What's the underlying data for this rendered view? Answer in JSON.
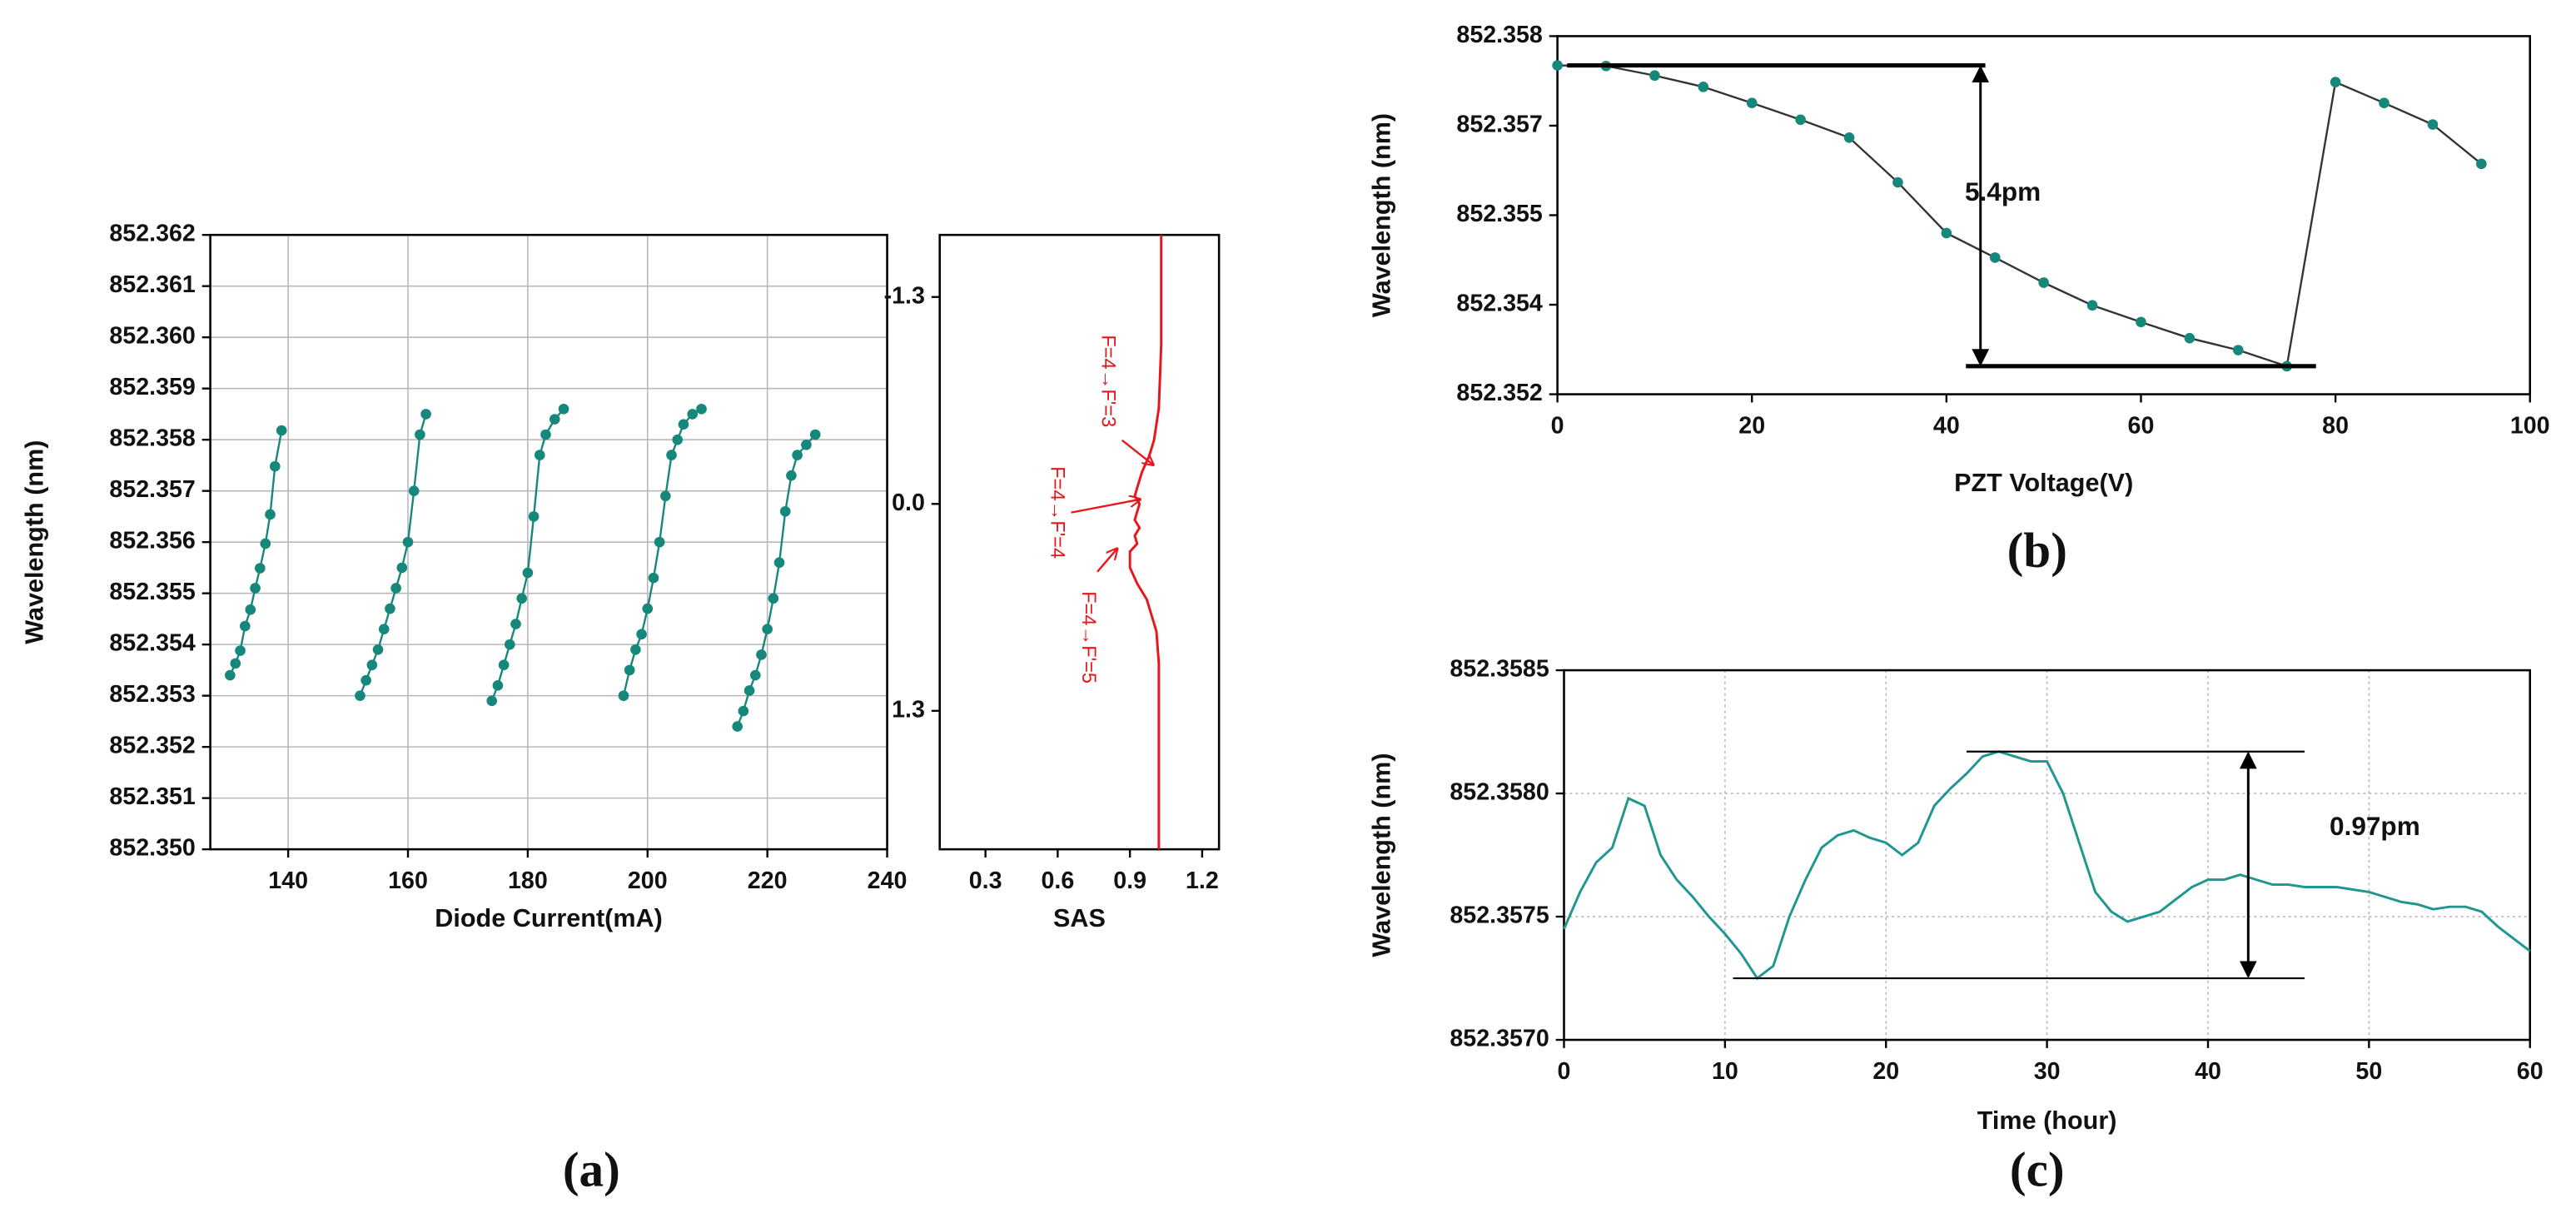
{
  "chart_data": [
    {
      "type": "line",
      "caption": "(a)",
      "xlabel": "Diode Current(mA)",
      "ylabel": "Wavelength (nm)",
      "xlim": [
        127,
        240
      ],
      "xticks": [
        140,
        160,
        180,
        200,
        220,
        240
      ],
      "ylim": [
        852.35,
        852.362
      ],
      "yticks": [
        {
          "value": 852.35,
          "label": "852.350"
        },
        852.351,
        852.352,
        852.353,
        852.354,
        852.355,
        852.356,
        852.357,
        852.358,
        852.359,
        {
          "value": 852.36,
          "label": "852.360"
        },
        852.361,
        852.362
      ],
      "grid": "solid",
      "markers": true,
      "series": [
        {
          "color": "#16877b",
          "x": [
            130.3,
            131.2,
            132,
            132.8,
            133.7,
            134.5,
            135.3,
            136.2,
            137,
            137.8,
            138.9
          ],
          "values": [
            852.3534,
            852.35363,
            852.35388,
            852.35436,
            852.35468,
            852.3551,
            852.35549,
            852.35597,
            852.35654,
            852.35748,
            852.35818
          ]
        },
        {
          "color": "#16877b",
          "x": [
            152,
            153,
            154,
            155,
            156,
            157,
            158,
            159,
            160,
            161,
            162,
            163
          ],
          "values": [
            852.353,
            852.3533,
            852.3536,
            852.3539,
            852.3543,
            852.3547,
            852.3551,
            852.3555,
            852.356,
            852.357,
            852.3581,
            852.3585
          ]
        },
        {
          "color": "#16877b",
          "x": [
            174,
            175,
            176,
            177,
            178,
            179,
            180,
            181,
            182,
            183,
            184.5,
            186
          ],
          "values": [
            852.3529,
            852.3532,
            852.3536,
            852.354,
            852.3544,
            852.3549,
            852.3554,
            852.3565,
            852.3577,
            852.3581,
            852.3584,
            852.3586
          ]
        },
        {
          "color": "#16877b",
          "x": [
            196,
            197,
            198,
            199,
            200,
            201,
            202,
            203,
            204,
            205,
            206,
            207.5,
            209
          ],
          "values": [
            852.353,
            852.3535,
            852.3539,
            852.3542,
            852.3547,
            852.3553,
            852.356,
            852.3569,
            852.3577,
            852.358,
            852.3583,
            852.3585,
            852.3586
          ]
        },
        {
          "color": "#16877b",
          "x": [
            215,
            216,
            217,
            218,
            219,
            220,
            221,
            222,
            223,
            224,
            225,
            226.5,
            228
          ],
          "values": [
            852.3524,
            852.3527,
            852.3531,
            852.3534,
            852.3538,
            852.3543,
            852.3549,
            852.3556,
            852.3566,
            852.3573,
            852.3577,
            852.3579,
            852.3581
          ]
        }
      ]
    },
    {
      "type": "line",
      "xlabel": "SAS",
      "xlim": [
        0.11,
        1.27
      ],
      "xticks": [
        0.3,
        0.6,
        0.9,
        1.2
      ],
      "ylim": [
        -1.69,
        2.17
      ],
      "y_inverted": true,
      "yticks": [
        -1.3,
        {
          "value": 0,
          "label": "0.0"
        },
        1.3
      ],
      "grid": false,
      "markers": false,
      "annotations": [
        {
          "text": "F=4→F'=3"
        },
        {
          "text": "F=4→F'=4"
        },
        {
          "text": "F=4→F'=5"
        }
      ],
      "series": [
        {
          "color": "#e8161b",
          "x": [
            1.03,
            1.03,
            1.02,
            1.0,
            0.98,
            0.95,
            0.93,
            0.92,
            0.94,
            0.93,
            0.92,
            0.94,
            0.92,
            0.93,
            0.9,
            0.9,
            0.93,
            0.97,
            1.01,
            1.02,
            1.02,
            1.02
          ],
          "values": [
            -1.69,
            -1.0,
            -0.6,
            -0.4,
            -0.3,
            -0.2,
            -0.1,
            -0.05,
            0,
            0.05,
            0.1,
            0.15,
            0.2,
            0.25,
            0.3,
            0.4,
            0.5,
            0.6,
            0.8,
            1.0,
            1.5,
            2.17
          ]
        }
      ]
    },
    {
      "type": "line",
      "caption": "(b)",
      "xlabel": "PZT Voltage(V)",
      "ylabel": "Wavelength (nm)",
      "xlim": [
        0,
        100
      ],
      "xticks": [
        0,
        20,
        40,
        60,
        80,
        100
      ],
      "ylim": [
        852.352,
        852.358
      ],
      "yticks": [
        852.352,
        {
          "value": 852.3535,
          "label": "852.354"
        },
        852.355,
        {
          "value": 852.3565,
          "label": "852.357"
        },
        852.358
      ],
      "grid": false,
      "markers": true,
      "annotations": [
        {
          "text": "5.4pm"
        }
      ],
      "x": [
        0,
        5,
        10,
        15,
        20,
        25,
        30,
        35,
        40,
        45,
        50,
        55,
        60,
        65,
        70,
        75,
        80,
        85,
        90,
        95
      ],
      "series": [
        {
          "color": "#16877b",
          "values": [
            852.35751,
            852.3575,
            852.35734,
            852.35715,
            852.35688,
            852.3566,
            852.3563,
            852.35555,
            852.3547,
            852.35429,
            852.35387,
            852.35349,
            852.35321,
            852.35294,
            852.35274,
            852.35247,
            852.35723,
            852.35688,
            852.35652,
            852.35586
          ]
        }
      ]
    },
    {
      "type": "line",
      "caption": "(c)",
      "xlabel": "Time (hour)",
      "ylabel": "Wavelength (nm)",
      "xlim": [
        0,
        60
      ],
      "xticks": [
        0,
        10,
        20,
        30,
        40,
        50,
        60
      ],
      "ylim": [
        852.357,
        852.3585
      ],
      "yticks": [
        {
          "value": 852.357,
          "label": "852.3570"
        },
        852.3575,
        {
          "value": 852.358,
          "label": "852.3580"
        },
        852.3585
      ],
      "grid": "dotted",
      "markers": false,
      "annotations": [
        {
          "text": "0.97pm"
        }
      ],
      "x": [
        0,
        1,
        2,
        3,
        4,
        5,
        6,
        7,
        8,
        9,
        10,
        11,
        12,
        13,
        14,
        15,
        16,
        17,
        18,
        19,
        20,
        21,
        22,
        23,
        24,
        25,
        26,
        27,
        28,
        29,
        30,
        31,
        32,
        33,
        34,
        35,
        36,
        37,
        38,
        39,
        40,
        41,
        42,
        43,
        44,
        45,
        46,
        47,
        48,
        49,
        50,
        51,
        52,
        53,
        54,
        55,
        56,
        57,
        58,
        59,
        60
      ],
      "series": [
        {
          "color": "#1f9690",
          "values": [
            852.35745,
            852.3576,
            852.35772,
            852.35778,
            852.35798,
            852.35795,
            852.35775,
            852.35765,
            852.35758,
            852.3575,
            852.35743,
            852.35735,
            852.35725,
            852.3573,
            852.3575,
            852.35765,
            852.35778,
            852.35783,
            852.35785,
            852.35782,
            852.3578,
            852.35775,
            852.3578,
            852.35795,
            852.35802,
            852.35808,
            852.35815,
            852.35817,
            852.35815,
            852.35813,
            852.35813,
            852.358,
            852.3578,
            852.3576,
            852.35752,
            852.35748,
            852.3575,
            852.35752,
            852.35757,
            852.35762,
            852.35765,
            852.35765,
            852.35767,
            852.35765,
            852.35763,
            852.35763,
            852.35762,
            852.35762,
            852.35762,
            852.35761,
            852.3576,
            852.35758,
            852.35756,
            852.35755,
            852.35753,
            852.35754,
            852.35754,
            852.35752,
            852.35746,
            852.35741,
            852.35736
          ]
        }
      ]
    }
  ]
}
